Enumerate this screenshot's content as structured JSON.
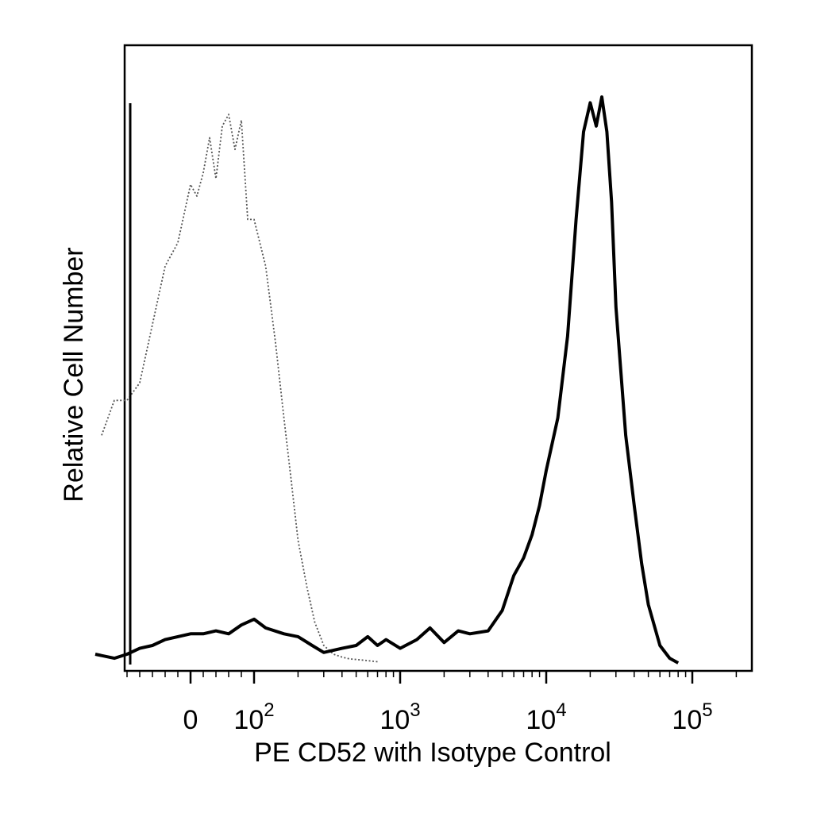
{
  "chart_data": {
    "type": "line",
    "xlabel": "PE CD52 with Isotype Control",
    "ylabel": "Relative Cell Number",
    "x_scale": "logicle",
    "xlim": [
      -150,
      250000
    ],
    "ylim": [
      0,
      100
    ],
    "grid": false,
    "x_ticks": [
      {
        "value": 0,
        "base": "0",
        "exp": ""
      },
      {
        "value": 100,
        "base": "10",
        "exp": "2"
      },
      {
        "value": 1000,
        "base": "10",
        "exp": "3"
      },
      {
        "value": 10000,
        "base": "10",
        "exp": "4"
      },
      {
        "value": 100000,
        "base": "10",
        "exp": "5"
      }
    ],
    "series": [
      {
        "style": "dotted",
        "color": "#555555",
        "x": [
          -140,
          -120,
          -100,
          -80,
          -60,
          -40,
          -20,
          0,
          10,
          20,
          30,
          40,
          50,
          60,
          70,
          80,
          90,
          100,
          120,
          140,
          160,
          180,
          200,
          230,
          260,
          300,
          350,
          400,
          450,
          500,
          600,
          700
        ],
        "y": [
          39,
          45,
          45,
          48,
          58,
          68,
          72,
          82,
          80,
          84,
          90,
          83,
          92,
          94,
          88,
          93,
          76,
          76,
          68,
          55,
          42,
          31,
          21,
          13,
          7,
          3,
          1.5,
          1,
          0.7,
          0.6,
          0.4,
          0.2
        ]
      },
      {
        "style": "solid",
        "color": "#000000",
        "x": [
          -150,
          -120,
          -100,
          -80,
          -60,
          -40,
          -20,
          0,
          20,
          40,
          60,
          80,
          100,
          120,
          160,
          200,
          250,
          300,
          400,
          500,
          600,
          700,
          800,
          1000,
          1300,
          1600,
          2000,
          2500,
          3000,
          4000,
          5000,
          6000,
          7000,
          8000,
          9000,
          10000,
          12000,
          14000,
          16000,
          18000,
          20000,
          22000,
          24000,
          26000,
          28000,
          30000,
          35000,
          40000,
          45000,
          50000,
          60000,
          70000,
          80000
        ],
        "y": [
          1.5,
          0.8,
          1.5,
          2.5,
          3,
          4,
          4.5,
          5,
          5,
          5.5,
          5,
          6.5,
          7.5,
          6,
          5,
          4.5,
          3,
          1.8,
          2.5,
          3,
          4.5,
          3,
          4,
          2.5,
          4,
          6,
          3.5,
          5.5,
          5,
          5.5,
          9,
          15,
          18,
          22,
          27,
          33,
          42,
          56,
          76,
          91,
          96,
          92,
          97,
          91,
          79,
          61,
          39,
          27,
          17,
          10,
          3,
          0.8,
          0
        ]
      }
    ]
  }
}
